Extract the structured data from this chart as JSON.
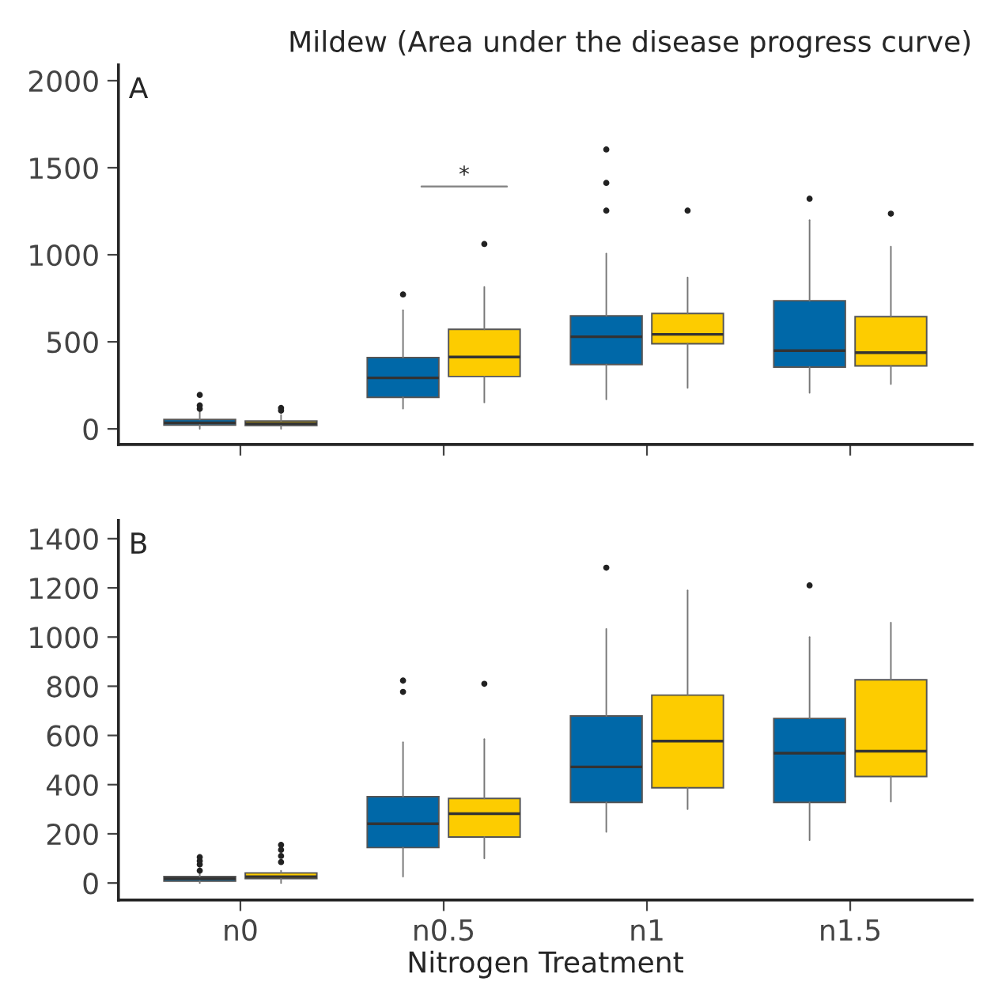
{
  "chart_data": [
    {
      "type": "box",
      "title": "Mildew (Area under the disease progress curve)",
      "categories": [
        null,
        null,
        null,
        null
      ],
      "ylim": [
        -90,
        2090
      ],
      "yticks": [
        0,
        500,
        1000,
        1500,
        2000
      ],
      "tick_labels": "y",
      "annotations": [
        "A",
        "*"
      ],
      "series": [
        {
          "color": "#0068a8",
          "boxes": [
            {
              "low": 0,
              "q1": 22,
              "median": 35,
              "q3": 54,
              "high": 100,
              "outliers": [
                115,
                135,
                195
              ]
            },
            {
              "low": 116,
              "q1": 181,
              "median": 293,
              "q3": 409,
              "high": 681,
              "outliers": [
                772
              ]
            },
            {
              "low": 170,
              "q1": 370,
              "median": 529,
              "q3": 649,
              "high": 1007,
              "outliers": [
                1254,
                1413,
                1605
              ]
            },
            {
              "low": 207,
              "q1": 355,
              "median": 449,
              "q3": 736,
              "high": 1199,
              "outliers": [
                1322
              ]
            }
          ]
        },
        {
          "color": "#fdcc00",
          "boxes": [
            {
              "low": 0,
              "q1": 20,
              "median": 30,
              "q3": 45,
              "high": 80,
              "outliers": [
                105,
                120
              ]
            },
            {
              "low": 152,
              "q1": 301,
              "median": 413,
              "q3": 572,
              "high": 815,
              "outliers": [
                1062
              ]
            },
            {
              "low": 236,
              "q1": 489,
              "median": 543,
              "q3": 663,
              "high": 870,
              "outliers": [
                1254
              ]
            },
            {
              "low": 257,
              "q1": 362,
              "median": 438,
              "q3": 645,
              "high": 1047,
              "outliers": [
                1236
              ]
            }
          ]
        }
      ]
    },
    {
      "type": "box",
      "xlabel": "Nitrogen Treatment",
      "categories": [
        "n0",
        "n0.5",
        "n1",
        "n1.5"
      ],
      "ylim": [
        -69,
        1474
      ],
      "yticks": [
        0,
        200,
        400,
        600,
        800,
        1000,
        1200,
        1400
      ],
      "annotations": [
        "B"
      ],
      "series": [
        {
          "color": "#0068a8",
          "boxes": [
            {
              "low": 0,
              "q1": 8,
              "median": 18,
              "q3": 26,
              "high": 40,
              "outliers": [
                50,
                75,
                90,
                105
              ]
            },
            {
              "low": 26,
              "q1": 144,
              "median": 241,
              "q3": 351,
              "high": 572,
              "outliers": [
                777,
                823
              ]
            },
            {
              "low": 208,
              "q1": 328,
              "median": 472,
              "q3": 679,
              "high": 1033,
              "outliers": [
                1282
              ]
            },
            {
              "low": 174,
              "q1": 328,
              "median": 528,
              "q3": 669,
              "high": 1000,
              "outliers": [
                1210
              ]
            }
          ]
        },
        {
          "color": "#fdcc00",
          "boxes": [
            {
              "low": 0,
              "q1": 18,
              "median": 26,
              "q3": 41,
              "high": 50,
              "outliers": [
                85,
                110,
                135,
                155
              ]
            },
            {
              "low": 100,
              "q1": 187,
              "median": 282,
              "q3": 344,
              "high": 585,
              "outliers": [
                810
              ]
            },
            {
              "low": 300,
              "q1": 387,
              "median": 577,
              "q3": 764,
              "high": 1190
            },
            {
              "low": 331,
              "q1": 433,
              "median": 536,
              "q3": 826,
              "high": 1059
            }
          ]
        }
      ]
    }
  ]
}
